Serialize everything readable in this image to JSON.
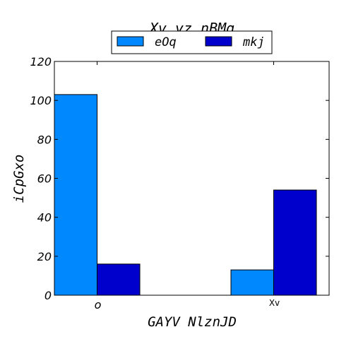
{
  "chart_data": {
    "type": "bar",
    "title": "Xv yz nBMq",
    "xlabel": "GAYV NlznJD",
    "ylabel": "iCpGxo",
    "categories": [
      "o",
      "Xv"
    ],
    "series": [
      {
        "name": "eOq",
        "values": [
          103,
          13
        ],
        "color": "#0088ff"
      },
      {
        "name": "mkj",
        "values": [
          16,
          54
        ],
        "color": "#0000cc"
      }
    ],
    "ylim": [
      0,
      120
    ],
    "yticks": [
      0,
      20,
      40,
      60,
      80,
      100,
      120
    ],
    "legend_position": "top-center",
    "grid": false
  }
}
